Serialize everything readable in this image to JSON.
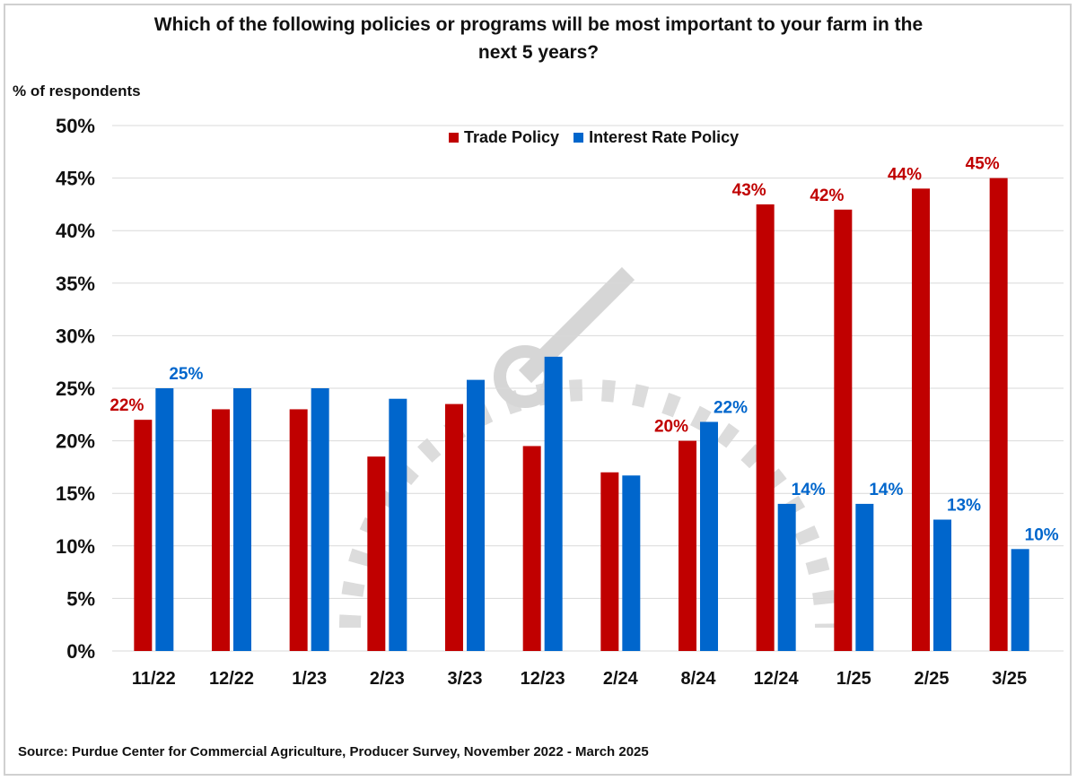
{
  "chart_data": {
    "type": "bar",
    "title": "Which of the following policies or programs will be most important to your farm in the next 5 years?",
    "ylabel": "% of respondents",
    "xlabel": "",
    "ylim": [
      0,
      50
    ],
    "yticks": [
      "0%",
      "5%",
      "10%",
      "15%",
      "20%",
      "25%",
      "30%",
      "35%",
      "40%",
      "45%",
      "50%"
    ],
    "grid": true,
    "legend_position": "top-center",
    "categories": [
      "11/22",
      "12/22",
      "1/23",
      "2/23",
      "3/23",
      "12/23",
      "2/24",
      "8/24",
      "12/24",
      "1/25",
      "2/25",
      "3/25"
    ],
    "series": [
      {
        "name": "Trade Policy",
        "color": "#c00000",
        "values": [
          22,
          23,
          23,
          18.5,
          23.5,
          19.5,
          17,
          20,
          42.5,
          42,
          44,
          45
        ],
        "labels": [
          "22%",
          null,
          null,
          null,
          null,
          null,
          null,
          "20%",
          "43%",
          "42%",
          "44%",
          "45%"
        ]
      },
      {
        "name": "Interest Rate Policy",
        "color": "#0066cc",
        "values": [
          25,
          25,
          25,
          24,
          25.8,
          28,
          16.7,
          21.8,
          14,
          14,
          12.5,
          9.7
        ],
        "labels": [
          "25%",
          null,
          null,
          null,
          null,
          null,
          null,
          "22%",
          "14%",
          "14%",
          "13%",
          "10%"
        ]
      }
    ],
    "source": "Source:  Purdue Center for Commercial Agriculture, Producer Survey, November 2022 - March 2025"
  },
  "watermark": {
    "line1": "AG ECONOMY",
    "line2": "BAROMETER",
    "line3": "PURDUE UNIVERSITY CCA GROUP"
  }
}
